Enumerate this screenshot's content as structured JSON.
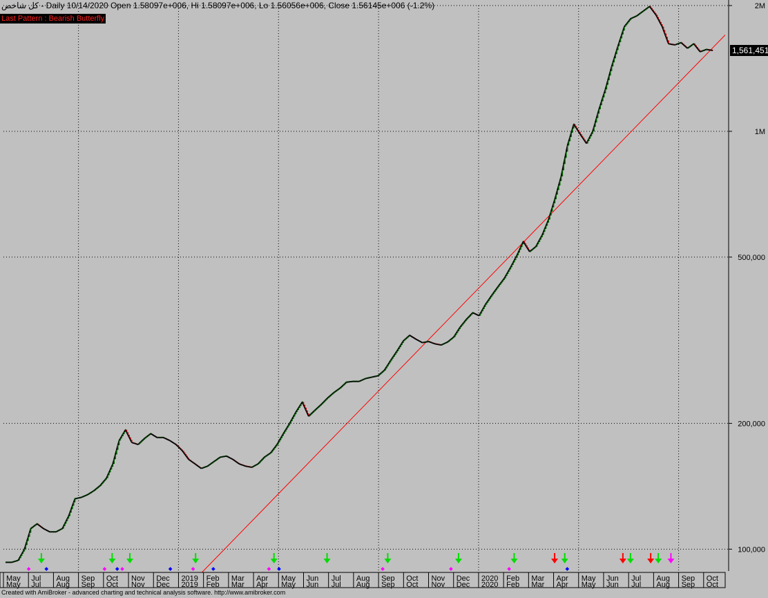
{
  "header": {
    "symbol": "كل شاخص",
    "info": "- Daily 10/14/2020 Open 1.58097e+006, Hi 1.58097e+006, Lo 1.56056e+006, Close 1.56145e+006 (-1.2%)"
  },
  "pattern_label": "Last Pattern : Bearish Butterfly",
  "footer": "Created with AmiBroker - advanced charting and technical analysis software. http://www.amibroker.com",
  "last_price_label": "1,561,451",
  "colors": {
    "background": "#c0c0c0",
    "up": "#006400",
    "down": "#c00000",
    "trend": "#ff0000",
    "signal_green": "#00dd00",
    "signal_red": "#ff0000",
    "signal_magenta": "#ff00ff",
    "signal_blue": "#0000ff"
  },
  "chart_data": {
    "type": "line",
    "scale": "log",
    "ylim": [
      90000,
      2000000
    ],
    "y_ticks": [
      {
        "value": 100000,
        "label": "100,000"
      },
      {
        "value": 200000,
        "label": "200,000"
      },
      {
        "value": 500000,
        "label": "500,000"
      },
      {
        "value": 1000000,
        "label": "1M"
      },
      {
        "value": 2000000,
        "label": "2M"
      }
    ],
    "months": [
      "May",
      "Jul",
      "Aug",
      "Sep",
      "Oct",
      "Nov",
      "Dec",
      "2019",
      "Feb",
      "Mar",
      "Apr",
      "May",
      "Jun",
      "Jul",
      "Aug",
      "Sep",
      "Oct",
      "Nov",
      "Dec",
      "2020",
      "Feb",
      "Mar",
      "Apr",
      "May",
      "Jun",
      "Jul",
      "Aug",
      "Sep",
      "Oct"
    ],
    "series": [
      {
        "values": [
          93000,
          93000,
          94000,
          100000,
          112000,
          115000,
          112000,
          110000,
          110000,
          112000,
          120000,
          132000,
          133000,
          135000,
          138000,
          142000,
          148000,
          160000,
          182000,
          193000,
          180000,
          178000,
          184000,
          189000,
          185000,
          185000,
          182000,
          178000,
          172000,
          164000,
          160000,
          156000,
          158000,
          162000,
          166000,
          167000,
          164000,
          160000,
          158000,
          157000,
          160000,
          166000,
          170000,
          178000,
          189000,
          200000,
          213000,
          225000,
          208000,
          215000,
          222000,
          230000,
          237000,
          243000,
          251000,
          252000,
          252000,
          256000,
          258000,
          260000,
          268000,
          283000,
          298000,
          315000,
          325000,
          318000,
          312000,
          314000,
          310000,
          308000,
          313000,
          322000,
          340000,
          355000,
          368000,
          362000,
          385000,
          405000,
          425000,
          445000,
          473000,
          505000,
          545000,
          515000,
          530000,
          565000,
          615000,
          688000,
          780000,
          925000,
          1040000,
          985000,
          935000,
          1000000,
          1130000,
          1260000,
          1430000,
          1600000,
          1780000,
          1860000,
          1890000,
          1940000,
          1990000,
          1900000,
          1780000,
          1620000,
          1610000,
          1630000,
          1580000,
          1620000,
          1550000,
          1570000,
          1561451
        ]
      }
    ],
    "trendline": {
      "start": [
        0.23,
        85000
      ],
      "end": [
        1.0,
        1700000
      ]
    },
    "signals": [
      {
        "x": 2,
        "kind": "magenta-dot"
      },
      {
        "x": 3,
        "kind": "green-down"
      },
      {
        "x": 3.4,
        "kind": "blue-dot"
      },
      {
        "x": 8,
        "kind": "magenta-dot"
      },
      {
        "x": 8.6,
        "kind": "green-down"
      },
      {
        "x": 9,
        "kind": "blue-dot"
      },
      {
        "x": 9.4,
        "kind": "magenta-dot"
      },
      {
        "x": 10,
        "kind": "green-down"
      },
      {
        "x": 13.2,
        "kind": "blue-dot"
      },
      {
        "x": 15,
        "kind": "magenta-dot"
      },
      {
        "x": 15.2,
        "kind": "green-down"
      },
      {
        "x": 16.6,
        "kind": "blue-dot"
      },
      {
        "x": 21,
        "kind": "magenta-dot"
      },
      {
        "x": 21.4,
        "kind": "green-down"
      },
      {
        "x": 21.8,
        "kind": "blue-dot"
      },
      {
        "x": 25.6,
        "kind": "green-down"
      },
      {
        "x": 30,
        "kind": "magenta-dot"
      },
      {
        "x": 30.4,
        "kind": "green-down"
      },
      {
        "x": 35.4,
        "kind": "magenta-dot"
      },
      {
        "x": 36,
        "kind": "green-down"
      },
      {
        "x": 40,
        "kind": "magenta-dot"
      },
      {
        "x": 40.4,
        "kind": "green-down"
      },
      {
        "x": 43.6,
        "kind": "red-down"
      },
      {
        "x": 44.4,
        "kind": "green-down"
      },
      {
        "x": 44.6,
        "kind": "blue-dot"
      },
      {
        "x": 49,
        "kind": "red-down"
      },
      {
        "x": 49.6,
        "kind": "green-down"
      },
      {
        "x": 51.2,
        "kind": "red-down"
      },
      {
        "x": 51.8,
        "kind": "green-down"
      },
      {
        "x": 52.8,
        "kind": "magenta-down"
      }
    ]
  }
}
